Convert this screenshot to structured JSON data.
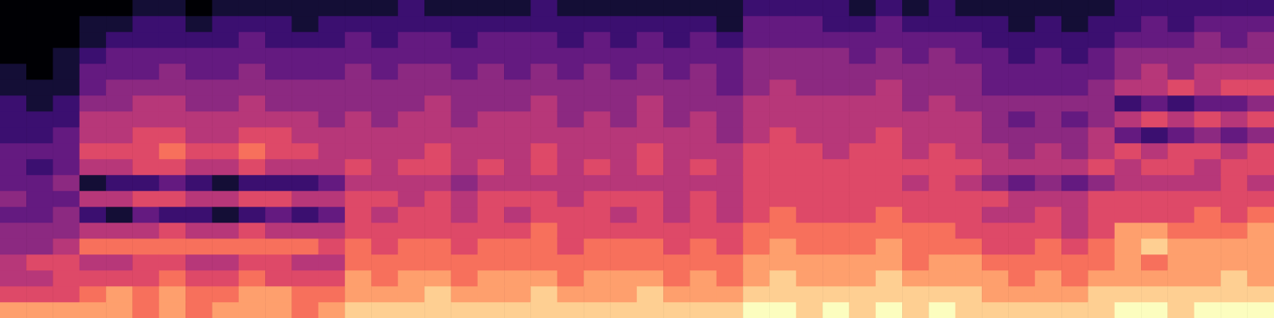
{
  "chart_data": {
    "type": "heatmap",
    "tick_labels": false,
    "grid": false,
    "color_range": [
      0,
      10
    ],
    "cells": [
      [
        8,
        6,
        5,
        5,
        4,
        4,
        3,
        4,
        3,
        3,
        3,
        2,
        2,
        2,
        1,
        1,
        0,
        0,
        0,
        0
      ],
      [
        8,
        6,
        5,
        6,
        4,
        4,
        3,
        3,
        3,
        2,
        3,
        2,
        2,
        1,
        1,
        0,
        0,
        0,
        0,
        0
      ],
      [
        8,
        6,
        6,
        6,
        5,
        4,
        4,
        3,
        4,
        3,
        3,
        3,
        2,
        2,
        1,
        1,
        1,
        0,
        0,
        0
      ],
      [
        8,
        7,
        6,
        5,
        7,
        5,
        2,
        5,
        1,
        5,
        6,
        5,
        5,
        4,
        3,
        3,
        2,
        1,
        1,
        0
      ],
      [
        8,
        8,
        6,
        5,
        7,
        5,
        1,
        5,
        2,
        5,
        6,
        5,
        5,
        4,
        4,
        3,
        3,
        2,
        1,
        0
      ],
      [
        7,
        7,
        6,
        6,
        7,
        5,
        3,
        6,
        2,
        6,
        6,
        6,
        5,
        5,
        4,
        3,
        3,
        2,
        2,
        1
      ],
      [
        8,
        8,
        7,
        6,
        7,
        6,
        2,
        6,
        3,
        6,
        7,
        6,
        5,
        5,
        4,
        4,
        3,
        2,
        2,
        1
      ],
      [
        7,
        7,
        6,
        5,
        7,
        5,
        2,
        5,
        2,
        5,
        6,
        5,
        5,
        4,
        4,
        3,
        3,
        2,
        1,
        0
      ],
      [
        8,
        7,
        6,
        5,
        7,
        5,
        1,
        5,
        1,
        5,
        6,
        5,
        5,
        4,
        4,
        3,
        3,
        2,
        2,
        1
      ],
      [
        8,
        8,
        7,
        6,
        7,
        6,
        2,
        6,
        2,
        6,
        7,
        6,
        5,
        5,
        4,
        4,
        3,
        3,
        2,
        1
      ],
      [
        8,
        8,
        6,
        6,
        7,
        5,
        3,
        6,
        2,
        5,
        6,
        6,
        5,
        4,
        4,
        3,
        3,
        2,
        2,
        1
      ],
      [
        7,
        7,
        6,
        5,
        7,
        5,
        2,
        5,
        2,
        5,
        6,
        5,
        5,
        4,
        4,
        3,
        3,
        2,
        1,
        1
      ],
      [
        8,
        7,
        6,
        5,
        6,
        5,
        3,
        5,
        3,
        5,
        5,
        5,
        4,
        4,
        4,
        3,
        3,
        2,
        2,
        1
      ],
      [
        9,
        8,
        8,
        7,
        7,
        6,
        6,
        6,
        5,
        6,
        5,
        5,
        5,
        4,
        4,
        4,
        3,
        3,
        2,
        1
      ],
      [
        9,
        8,
        7,
        7,
        6,
        6,
        5,
        6,
        5,
        5,
        5,
        5,
        4,
        4,
        4,
        3,
        3,
        2,
        2,
        1
      ],
      [
        9,
        8,
        8,
        7,
        7,
        6,
        6,
        5,
        5,
        6,
        5,
        5,
        5,
        4,
        4,
        4,
        3,
        3,
        2,
        2
      ],
      [
        9,
        9,
        8,
        7,
        7,
        6,
        6,
        6,
        5,
        6,
        6,
        5,
        5,
        5,
        4,
        4,
        3,
        3,
        2,
        1
      ],
      [
        9,
        8,
        7,
        7,
        6,
        6,
        5,
        5,
        4,
        5,
        5,
        5,
        4,
        4,
        4,
        3,
        3,
        2,
        2,
        1
      ],
      [
        9,
        8,
        8,
        7,
        7,
        6,
        6,
        6,
        5,
        6,
        5,
        5,
        5,
        4,
        4,
        4,
        3,
        3,
        2,
        1
      ],
      [
        9,
        8,
        8,
        7,
        7,
        6,
        5,
        6,
        5,
        5,
        5,
        5,
        5,
        4,
        4,
        3,
        3,
        3,
        2,
        1
      ],
      [
        9,
        9,
        8,
        7,
        7,
        7,
        6,
        6,
        5,
        6,
        6,
        5,
        5,
        5,
        4,
        4,
        3,
        3,
        2,
        2
      ],
      [
        9,
        8,
        7,
        7,
        6,
        6,
        6,
        5,
        5,
        5,
        5,
        5,
        4,
        4,
        4,
        3,
        3,
        2,
        2,
        1
      ],
      [
        9,
        8,
        8,
        7,
        7,
        6,
        6,
        6,
        5,
        6,
        5,
        5,
        5,
        4,
        4,
        4,
        3,
        3,
        2,
        1
      ],
      [
        9,
        8,
        8,
        7,
        7,
        6,
        5,
        6,
        5,
        5,
        5,
        5,
        4,
        4,
        4,
        3,
        3,
        2,
        2,
        1
      ],
      [
        9,
        9,
        8,
        7,
        7,
        6,
        6,
        6,
        5,
        6,
        6,
        5,
        5,
        5,
        4,
        4,
        3,
        3,
        2,
        1
      ],
      [
        9,
        8,
        7,
        7,
        6,
        6,
        5,
        5,
        5,
        5,
        5,
        5,
        4,
        4,
        4,
        3,
        3,
        2,
        2,
        1
      ],
      [
        9,
        8,
        8,
        7,
        7,
        6,
        6,
        6,
        5,
        6,
        5,
        5,
        5,
        4,
        4,
        4,
        3,
        3,
        2,
        1
      ],
      [
        9,
        8,
        7,
        7,
        6,
        6,
        5,
        5,
        5,
        5,
        5,
        4,
        4,
        4,
        3,
        3,
        3,
        2,
        1,
        1
      ],
      [
        10,
        9,
        8,
        8,
        7,
        7,
        6,
        6,
        6,
        6,
        6,
        5,
        5,
        5,
        4,
        4,
        4,
        3,
        3,
        2
      ],
      [
        10,
        9,
        9,
        8,
        8,
        7,
        7,
        6,
        6,
        6,
        6,
        6,
        5,
        5,
        5,
        4,
        4,
        3,
        3,
        2
      ],
      [
        9,
        9,
        8,
        8,
        7,
        7,
        6,
        6,
        6,
        6,
        6,
        5,
        5,
        5,
        4,
        4,
        4,
        3,
        3,
        2
      ],
      [
        10,
        9,
        8,
        8,
        7,
        7,
        6,
        6,
        6,
        6,
        5,
        5,
        5,
        5,
        4,
        4,
        4,
        3,
        2,
        2
      ],
      [
        9,
        9,
        8,
        8,
        7,
        7,
        6,
        6,
        6,
        6,
        6,
        5,
        5,
        5,
        4,
        4,
        3,
        3,
        2,
        1
      ],
      [
        10,
        9,
        9,
        8,
        8,
        7,
        7,
        6,
        6,
        6,
        6,
        6,
        5,
        5,
        5,
        4,
        4,
        3,
        3,
        2
      ],
      [
        9,
        9,
        8,
        7,
        7,
        7,
        6,
        6,
        5,
        6,
        5,
        5,
        5,
        4,
        4,
        4,
        3,
        3,
        2,
        1
      ],
      [
        10,
        9,
        8,
        8,
        7,
        7,
        6,
        6,
        6,
        6,
        6,
        5,
        5,
        5,
        4,
        4,
        4,
        3,
        2,
        2
      ],
      [
        9,
        9,
        8,
        8,
        7,
        6,
        6,
        6,
        5,
        6,
        5,
        5,
        5,
        4,
        4,
        4,
        3,
        3,
        2,
        1
      ],
      [
        9,
        8,
        8,
        7,
        6,
        6,
        5,
        6,
        4,
        5,
        5,
        4,
        4,
        4,
        3,
        3,
        3,
        2,
        2,
        1
      ],
      [
        9,
        8,
        7,
        7,
        6,
        6,
        5,
        5,
        3,
        5,
        4,
        4,
        3,
        4,
        3,
        3,
        2,
        2,
        1,
        1
      ],
      [
        9,
        8,
        8,
        7,
        7,
        6,
        6,
        5,
        4,
        5,
        5,
        4,
        4,
        4,
        3,
        3,
        3,
        2,
        2,
        1
      ],
      [
        9,
        8,
        7,
        7,
        6,
        5,
        5,
        5,
        3,
        5,
        4,
        4,
        3,
        4,
        3,
        3,
        2,
        2,
        1,
        1
      ],
      [
        9,
        9,
        8,
        7,
        7,
        6,
        6,
        6,
        4,
        6,
        5,
        5,
        4,
        4,
        4,
        3,
        3,
        2,
        2,
        1
      ],
      [
        10,
        9,
        8,
        8,
        8,
        8,
        6,
        6,
        5,
        5,
        6,
        3,
        5,
        2,
        5,
        4,
        4,
        3,
        2,
        2
      ],
      [
        10,
        9,
        8,
        7,
        9,
        8,
        6,
        6,
        5,
        6,
        5,
        2,
        6,
        3,
        5,
        5,
        4,
        3,
        3,
        2
      ],
      [
        9,
        9,
        8,
        8,
        8,
        7,
        6,
        6,
        5,
        6,
        6,
        3,
        5,
        2,
        6,
        4,
        4,
        3,
        2,
        2
      ],
      [
        10,
        9,
        8,
        8,
        8,
        7,
        7,
        6,
        5,
        5,
        6,
        4,
        6,
        3,
        5,
        5,
        4,
        4,
        3,
        2
      ],
      [
        10,
        9,
        9,
        8,
        8,
        7,
        6,
        6,
        6,
        6,
        5,
        3,
        5,
        3,
        6,
        5,
        4,
        3,
        3,
        2
      ],
      [
        10,
        9,
        8,
        8,
        8,
        8,
        7,
        6,
        5,
        6,
        6,
        4,
        6,
        4,
        6,
        5,
        4,
        4,
        3,
        2
      ]
    ]
  }
}
